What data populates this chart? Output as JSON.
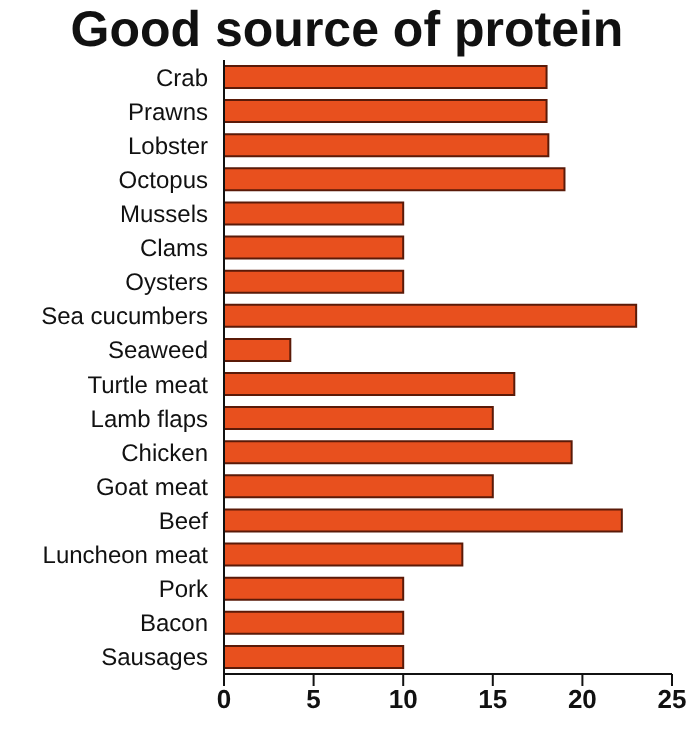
{
  "chart_data": {
    "type": "bar",
    "orientation": "horizontal",
    "title": "Good source of protein",
    "categories": [
      "Crab",
      "Prawns",
      "Lobster",
      "Octopus",
      "Mussels",
      "Clams",
      "Oysters",
      "Sea cucumbers",
      "Seaweed",
      "Turtle meat",
      "Lamb flaps",
      "Chicken",
      "Goat meat",
      "Beef",
      "Luncheon meat",
      "Pork",
      "Bacon",
      "Sausages"
    ],
    "values": [
      18,
      18,
      18.1,
      19,
      10,
      10,
      10,
      23,
      3.7,
      16.2,
      15,
      19.4,
      15,
      22.2,
      13.3,
      10,
      10,
      10
    ],
    "color": "#e8501e",
    "xlim": [
      0,
      25
    ],
    "xticks": [
      0,
      5,
      10,
      15,
      20,
      25
    ]
  }
}
